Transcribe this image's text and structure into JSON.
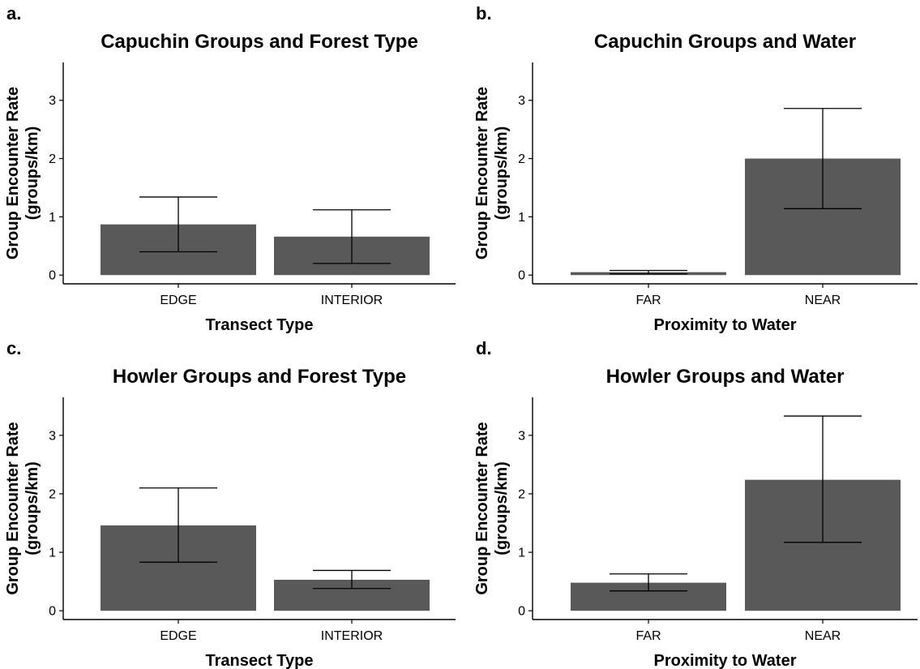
{
  "chart_data": [
    {
      "type": "bar",
      "panel_label": "a.",
      "title": "Capuchin Groups and Forest Type",
      "xlabel": "Transect Type",
      "ylabel_lines": [
        "Group Encounter Rate",
        "(groups/km)"
      ],
      "categories": [
        "EDGE",
        "INTERIOR"
      ],
      "values": [
        0.87,
        0.66
      ],
      "error_low": [
        0.4,
        0.2
      ],
      "error_high": [
        1.34,
        1.12
      ],
      "ylim": [
        -0.15,
        3.65
      ],
      "yticks": [
        0,
        1,
        2,
        3
      ],
      "bar_color": "#595959",
      "grid": false
    },
    {
      "type": "bar",
      "panel_label": "b.",
      "title": "Capuchin Groups and Water",
      "xlabel": "Proximity to Water",
      "ylabel_lines": [
        "Group Encounter Rate",
        "(groups/km)"
      ],
      "categories": [
        "FAR",
        "NEAR"
      ],
      "values": [
        0.05,
        2.0
      ],
      "error_low": [
        0.02,
        1.14
      ],
      "error_high": [
        0.08,
        2.86
      ],
      "ylim": [
        -0.15,
        3.65
      ],
      "yticks": [
        0,
        1,
        2,
        3
      ],
      "bar_color": "#595959",
      "grid": false
    },
    {
      "type": "bar",
      "panel_label": "c.",
      "title": "Howler Groups and Forest Type",
      "xlabel": "Transect Type",
      "ylabel_lines": [
        "Group Encounter Rate",
        "(groups/km)"
      ],
      "categories": [
        "EDGE",
        "INTERIOR"
      ],
      "values": [
        1.46,
        0.53
      ],
      "error_low": [
        0.83,
        0.38
      ],
      "error_high": [
        2.1,
        0.69
      ],
      "ylim": [
        -0.15,
        3.65
      ],
      "yticks": [
        0,
        1,
        2,
        3
      ],
      "bar_color": "#595959",
      "grid": false
    },
    {
      "type": "bar",
      "panel_label": "d.",
      "title": "Howler Groups and Water",
      "xlabel": "Proximity to Water",
      "ylabel_lines": [
        "Group Encounter Rate",
        "(groups/km)"
      ],
      "categories": [
        "FAR",
        "NEAR"
      ],
      "values": [
        0.48,
        2.24
      ],
      "error_low": [
        0.34,
        1.17
      ],
      "error_high": [
        0.63,
        3.33
      ],
      "ylim": [
        -0.15,
        3.65
      ],
      "yticks": [
        0,
        1,
        2,
        3
      ],
      "bar_color": "#595959",
      "grid": false
    }
  ]
}
